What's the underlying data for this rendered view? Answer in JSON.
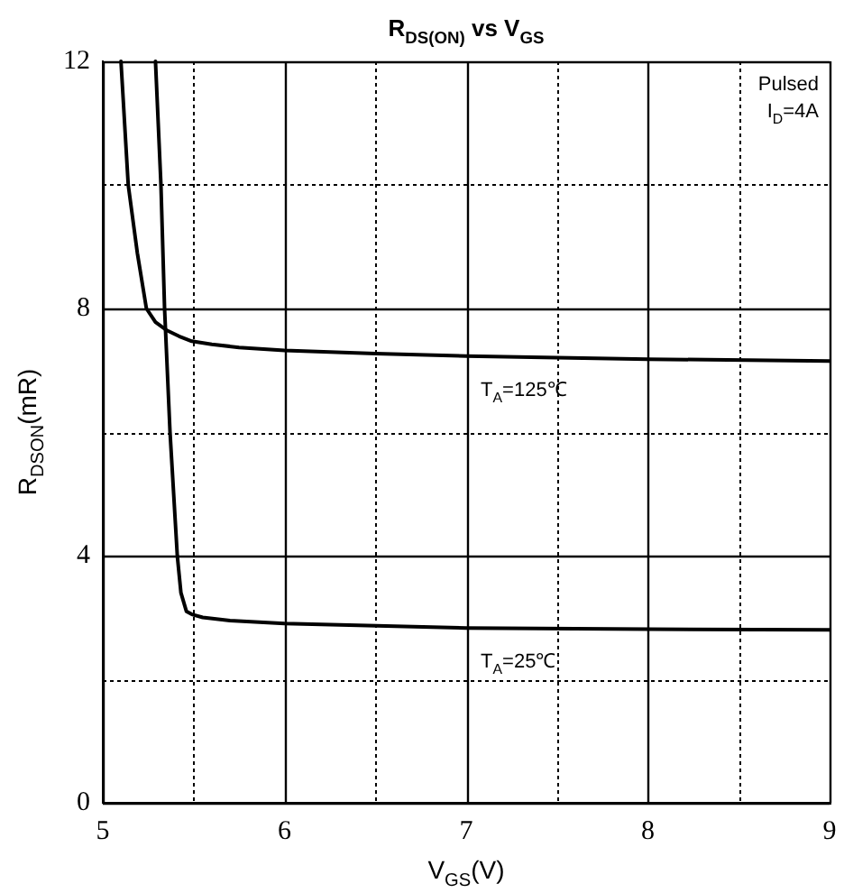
{
  "chart_data": {
    "type": "line",
    "title": "R$_{DS(ON)}$ vs V$_{GS}$",
    "xlabel": "V$_{GS}$(V)",
    "ylabel": "R$_{DSON}$(mR)",
    "xlim": [
      5,
      9
    ],
    "xticks": [
      5,
      {
        "value": 5.5,
        "label": null
      },
      6,
      {
        "value": 6.5,
        "label": null
      },
      7,
      {
        "value": 7.5,
        "label": null
      },
      8,
      {
        "value": 8.5,
        "label": null
      },
      9
    ],
    "ylim": [
      0,
      12
    ],
    "yticks": [
      0,
      {
        "value": 2,
        "label": null
      },
      4,
      {
        "value": 6,
        "label": null
      },
      8,
      {
        "value": 10,
        "label": null
      },
      12
    ],
    "grid": true,
    "legend": false,
    "marker": "none",
    "line_style": "solid",
    "series": [
      {
        "name": "T$_{A}$=125℃",
        "color": "#000000",
        "x": [
          5.1,
          5.14,
          5.19,
          5.24,
          5.29,
          5.35,
          5.42,
          5.49,
          5.6,
          5.75,
          6,
          6.5,
          7,
          8,
          9
        ],
        "values": [
          12,
          10,
          8.9,
          8,
          7.78,
          7.65,
          7.55,
          7.47,
          7.42,
          7.37,
          7.32,
          7.27,
          7.23,
          7.18,
          7.15
        ]
      },
      {
        "name": "T$_{A}$=25℃",
        "color": "#000000",
        "x": [
          5.29,
          5.32,
          5.34,
          5.37,
          5.41,
          5.43,
          5.46,
          5.49,
          5.55,
          5.7,
          6,
          7,
          8,
          9
        ],
        "values": [
          12,
          10,
          8,
          6,
          4,
          3.4,
          3.1,
          3.05,
          3.0,
          2.95,
          2.9,
          2.83,
          2.81,
          2.8
        ]
      }
    ],
    "annotations": [
      "Pulsed",
      "I$_{D}$=4A"
    ]
  }
}
